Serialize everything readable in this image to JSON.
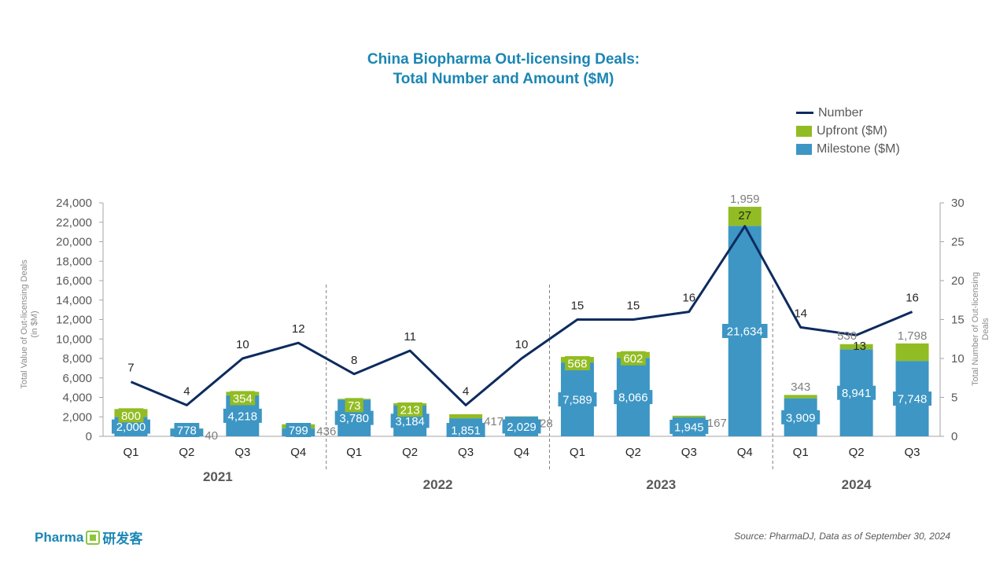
{
  "chart_data": {
    "type": "bar",
    "title": [
      "China Biopharma Out-licensing Deals:",
      "Total Number and Amount ($M)"
    ],
    "legend": {
      "placement": "top-right",
      "entries": [
        {
          "key": "number",
          "label": "Number",
          "kind": "line"
        },
        {
          "key": "upfront",
          "label": "Upfront ($M)",
          "kind": "box"
        },
        {
          "key": "milestone",
          "label": "Milestone ($M)",
          "kind": "box"
        }
      ]
    },
    "colors": {
      "milestone": "#3d96c4",
      "upfront": "#92bc23",
      "line": "#0d2b5e",
      "axis_text": "#595959",
      "year_text": "#595959",
      "grid": "#7f7f7f"
    },
    "categories": [
      "Q1",
      "Q2",
      "Q3",
      "Q4",
      "Q1",
      "Q2",
      "Q3",
      "Q4",
      "Q1",
      "Q2",
      "Q3",
      "Q4",
      "Q1",
      "Q2",
      "Q3"
    ],
    "years": [
      {
        "label": "2021",
        "start": 0,
        "end": 3
      },
      {
        "label": "2022",
        "start": 4,
        "end": 7
      },
      {
        "label": "2023",
        "start": 8,
        "end": 11
      },
      {
        "label": "2024",
        "start": 12,
        "end": 14
      }
    ],
    "milestone": [
      2000,
      778,
      4218,
      799,
      3780,
      3184,
      1851,
      2029,
      7589,
      8066,
      1945,
      21634,
      3909,
      8941,
      7748
    ],
    "upfront": [
      800,
      40,
      354,
      436,
      73,
      213,
      417,
      28,
      568,
      602,
      167,
      1959,
      343,
      530,
      1798
    ],
    "upfront_label_inside": [
      true,
      false,
      true,
      false,
      true,
      true,
      false,
      false,
      true,
      true,
      false,
      false,
      false,
      false,
      false
    ],
    "number": [
      7,
      4,
      10,
      12,
      8,
      11,
      4,
      10,
      15,
      15,
      16,
      27,
      14,
      13,
      16
    ],
    "ylabel_left": [
      "Total Value of Out-licensing Deals",
      "(in $M)"
    ],
    "ylabel_right": [
      "Total Number of Out-licensing",
      "Deals"
    ],
    "ylim_left": [
      0,
      24000
    ],
    "ytick_step_left": 2000,
    "ylim_right": [
      0,
      30
    ],
    "ytick_step_right": 5
  },
  "branding": {
    "logo_text": "Pharma",
    "logo_cn": "研发客"
  },
  "source_text": "Source: PharmaDJ, Data as of September 30, 2024"
}
